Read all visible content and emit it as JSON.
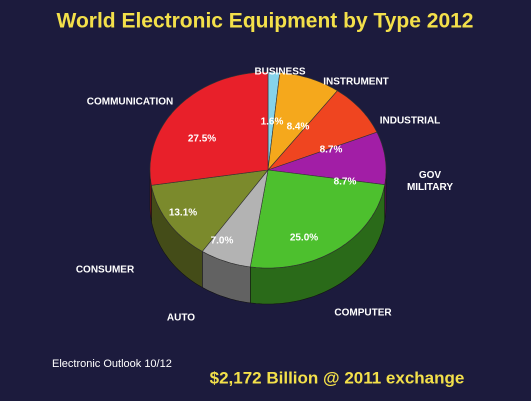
{
  "chart_data": {
    "type": "pie",
    "title": "World Electronic Equipment by Type 2012",
    "categories": [
      "BUSINESS",
      "INSTRUMENT",
      "INDUSTRIAL",
      "GOV\nMILITARY",
      "COMPUTER",
      "AUTO",
      "CONSUMER",
      "COMMUNICATION"
    ],
    "values": [
      1.6,
      8.4,
      8.7,
      8.7,
      25.0,
      7.0,
      13.1,
      27.5
    ],
    "value_labels": [
      "1.6%",
      "8.4%",
      "8.7%",
      "8.7%",
      "25.0%",
      "7.0%",
      "13.1%",
      "27.5%"
    ],
    "colors": [
      "#86d3ea",
      "#f5a81c",
      "#ef4520",
      "#a21ea6",
      "#4dc02e",
      "#b3b3b3",
      "#7b8a2c",
      "#e8202a"
    ],
    "source": "Electronic Outlook 10/12",
    "footnote": "$2,172 Billion @ 2011 exchange"
  }
}
